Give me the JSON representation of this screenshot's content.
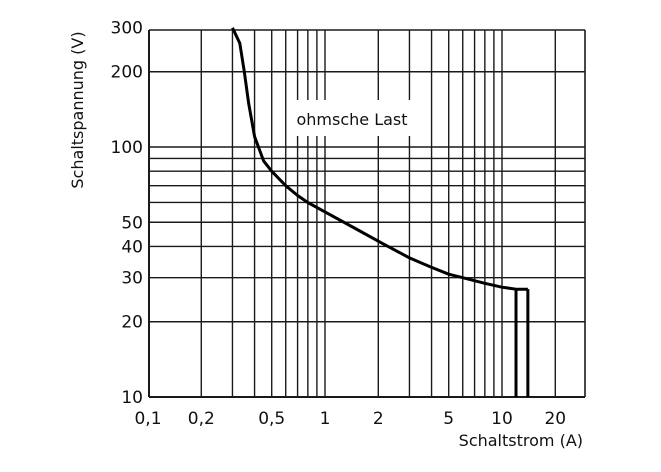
{
  "chart_data": {
    "type": "line",
    "title": "",
    "xlabel": "Schaltstrom (A)",
    "ylabel": "Schaltspannung (V)",
    "xscale": "log",
    "yscale": "log",
    "xlim": [
      0.07,
      30
    ],
    "ylim": [
      10,
      300
    ],
    "grid": true,
    "legend": null,
    "x_tick_labels": [
      "0,1",
      "0,2",
      "0,5",
      "1",
      "2",
      "5",
      "10",
      "20"
    ],
    "x_tick_values": [
      0.1,
      0.2,
      0.5,
      1,
      2,
      5,
      10,
      20
    ],
    "y_tick_labels": [
      "10",
      "20",
      "30",
      "40",
      "50",
      "100",
      "200",
      "300"
    ],
    "y_tick_values": [
      10,
      20,
      30,
      40,
      50,
      100,
      200,
      300
    ],
    "x_gridlines": [
      0.2,
      0.3,
      0.4,
      0.5,
      0.6,
      0.7,
      0.8,
      0.9,
      1,
      2,
      3,
      4,
      5,
      6,
      7,
      8,
      9,
      10,
      20
    ],
    "y_gridlines": [
      20,
      30,
      40,
      50,
      60,
      70,
      80,
      90,
      100,
      200
    ],
    "annotations": [
      {
        "text": "ohmsche Last",
        "x": 0.85,
        "y": 125
      }
    ],
    "series": [
      {
        "name": "ohmsche Last",
        "x": [
          0.3,
          0.33,
          0.35,
          0.37,
          0.4,
          0.45,
          0.5,
          0.6,
          0.7,
          0.8,
          1,
          1.5,
          2,
          3,
          4,
          5,
          6,
          8,
          10,
          12
        ],
        "y": [
          300,
          260,
          200,
          150,
          110,
          88,
          80,
          70,
          64,
          60,
          55,
          47,
          42,
          36,
          33,
          31,
          30,
          28.5,
          27.5,
          27
        ]
      }
    ],
    "limit_lines": [
      {
        "type": "vertical",
        "x": 12,
        "y_from": 10,
        "y_to": 27
      },
      {
        "type": "vertical",
        "x": 14,
        "y_from": 10,
        "y_to": 27
      }
    ]
  },
  "labels": {
    "x_axis_title": "Schaltstrom (A)",
    "y_axis_title": "Schaltspannung (V)",
    "annotation": "ohmsche Last",
    "x_ticks": [
      "0,1",
      "0,2",
      "0,5",
      "1",
      "2",
      "5",
      "10",
      "20"
    ],
    "y_ticks": [
      "10",
      "20",
      "30",
      "40",
      "50",
      "100",
      "200",
      "300"
    ]
  },
  "colors": {
    "grid": "#1a1a1a",
    "curve": "#000000",
    "background": "#ffffff"
  }
}
